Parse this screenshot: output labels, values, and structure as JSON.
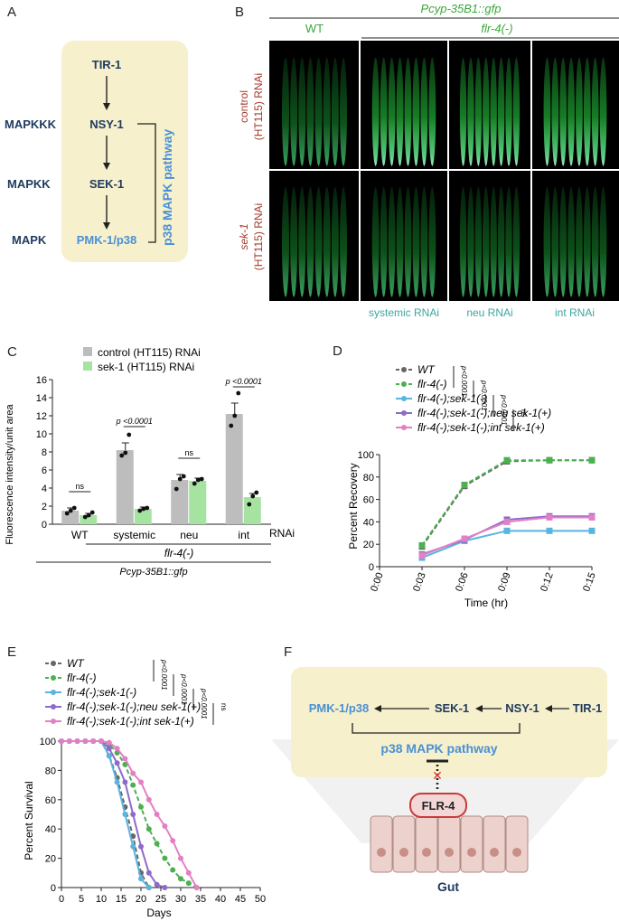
{
  "panel_a": {
    "letter": "A",
    "levels": [
      "MAPKKK",
      "MAPKK",
      "MAPK"
    ],
    "nodes": [
      "TIR-1",
      "NSY-1",
      "SEK-1",
      "PMK-1/p38"
    ],
    "pathway_label": "p38 MAPK pathway"
  },
  "panel_b": {
    "letter": "B",
    "reporter": "Pcyp-35B1::gfp",
    "col_wt": "WT",
    "col_flr4": "flr-4(-)",
    "row1": "control",
    "row1b": "(HT115) RNAi",
    "row2": "sek-1",
    "row2b": "(HT115) RNAi",
    "bottom": [
      "systemic RNAi",
      "neu RNAi",
      "int RNAi"
    ]
  },
  "panel_c": {
    "letter": "C",
    "legend": [
      "control (HT115) RNAi",
      "sek-1 (HT115) RNAi"
    ],
    "ylabel": "Fluorescence intensity/unit area",
    "groups": [
      "WT",
      "systemic",
      "neu",
      "int"
    ],
    "rnai_label": "RNAi",
    "flr4_label": "flr-4(-)",
    "reporter_label": "Pcyp-35B1::gfp",
    "stats": [
      "ns",
      "p <0.0001",
      "ns",
      "p <0.0001"
    ]
  },
  "panel_d": {
    "letter": "D",
    "legend": [
      "WT",
      "flr-4(-)",
      "flr-4(-);sek-1(-)",
      "flr-4(-);sek-1(-);neu sek-1(+)",
      "flr-4(-);sek-1(-);int sek-1(+)"
    ],
    "stats": [
      "p<0.0001",
      "p<0.0001",
      "p<0.0001",
      "ns"
    ],
    "ylabel": "Percent Recovery",
    "xlabel": "Time (hr)"
  },
  "panel_e": {
    "letter": "E",
    "legend": [
      "WT",
      "flr-4(-)",
      "flr-4(-);sek-1(-)",
      "flr-4(-);sek-1(-);neu sek-1(+)",
      "flr-4(-);sek-1(-);int sek-1(+)"
    ],
    "stats": [
      "p<0.0001",
      "p<0.0001",
      "p<0.0001",
      "ns"
    ],
    "ylabel": "Percent Survival",
    "xlabel": "Days"
  },
  "panel_f": {
    "letter": "F",
    "nodes": [
      "PMK-1/p38",
      "SEK-1",
      "NSY-1",
      "TIR-1"
    ],
    "pathway_label": "p38 MAPK pathway",
    "receptor": "FLR-4",
    "tissue": "Gut"
  },
  "chart_data": [
    {
      "type": "bar",
      "categories": [
        "WT",
        "systemic",
        "neu",
        "int"
      ],
      "series": [
        {
          "name": "control (HT115) RNAi",
          "color": "#bdbdbd",
          "values": [
            1.5,
            8.2,
            4.9,
            12.2
          ],
          "errors": [
            0.3,
            0.8,
            0.6,
            1.2
          ],
          "points": [
            [
              1.2,
              1.5,
              1.8
            ],
            [
              7.6,
              7.9,
              9.9
            ],
            [
              3.9,
              5.0,
              5.3
            ],
            [
              10.9,
              12.0,
              14.5
            ]
          ]
        },
        {
          "name": "sek-1 (HT115) RNAi",
          "color": "#a6e3a1",
          "values": [
            1.0,
            1.7,
            4.8,
            3.0
          ],
          "errors": [
            0.2,
            0.2,
            0.3,
            0.4
          ],
          "points": [
            [
              0.8,
              1.0,
              1.3
            ],
            [
              1.5,
              1.7,
              1.8
            ],
            [
              4.5,
              4.9,
              5.0
            ],
            [
              2.2,
              3.1,
              3.5
            ]
          ]
        }
      ],
      "ylabel": "Fluorescence intensity/unit area",
      "ylim": [
        0,
        16
      ],
      "yticks": [
        0,
        2,
        4,
        6,
        8,
        10,
        12,
        14,
        16
      ]
    },
    {
      "type": "line",
      "x": [
        "0:00",
        "0:03",
        "0:06",
        "0:09",
        "0:12",
        "0:15"
      ],
      "series": [
        {
          "name": "WT",
          "color": "#666666",
          "dash": true,
          "marker": "square",
          "values": [
            null,
            18,
            72,
            94,
            95,
            95
          ]
        },
        {
          "name": "flr-4(-)",
          "color": "#4caf50",
          "dash": true,
          "marker": "square",
          "values": [
            null,
            19,
            73,
            95,
            95,
            95
          ]
        },
        {
          "name": "flr-4(-);sek-1(-)",
          "color": "#5ab4e0",
          "dash": false,
          "marker": "square",
          "values": [
            null,
            8,
            23,
            32,
            32,
            32
          ]
        },
        {
          "name": "flr-4(-);sek-1(-);neu sek-1(+)",
          "color": "#8e6bc8",
          "dash": false,
          "marker": "square",
          "values": [
            null,
            11,
            24,
            42,
            45,
            45
          ]
        },
        {
          "name": "flr-4(-);sek-1(-);int sek-1(+)",
          "color": "#e37fc4",
          "dash": false,
          "marker": "square",
          "values": [
            null,
            10,
            25,
            40,
            44,
            44
          ]
        }
      ],
      "ylabel": "Percent Recovery",
      "xlabel": "Time (hr)",
      "ylim": [
        0,
        100
      ],
      "yticks": [
        0,
        20,
        40,
        60,
        80,
        100
      ]
    },
    {
      "type": "line",
      "x": [
        0,
        2,
        4,
        6,
        8,
        10,
        12,
        14,
        16,
        18,
        20,
        22,
        24,
        26,
        28,
        30,
        32,
        34
      ],
      "series": [
        {
          "name": "WT",
          "color": "#666666",
          "dash": true,
          "values": [
            100,
            100,
            100,
            100,
            100,
            100,
            90,
            75,
            55,
            35,
            10,
            0,
            null,
            null,
            null,
            null,
            null,
            null
          ]
        },
        {
          "name": "flr-4(-)",
          "color": "#4caf50",
          "dash": true,
          "values": [
            100,
            100,
            100,
            100,
            100,
            100,
            98,
            92,
            84,
            70,
            55,
            40,
            30,
            20,
            12,
            6,
            3,
            0
          ]
        },
        {
          "name": "flr-4(-);sek-1(-)",
          "color": "#5ab4e0",
          "dash": false,
          "values": [
            100,
            100,
            100,
            100,
            100,
            100,
            90,
            72,
            50,
            28,
            6,
            0,
            null,
            null,
            null,
            null,
            null,
            null
          ]
        },
        {
          "name": "flr-4(-);sek-1(-);neu sek-1(+)",
          "color": "#8e6bc8",
          "dash": false,
          "values": [
            100,
            100,
            100,
            100,
            100,
            100,
            95,
            85,
            72,
            50,
            28,
            10,
            2,
            0,
            null,
            null,
            null,
            null
          ]
        },
        {
          "name": "flr-4(-);sek-1(-);int sek-1(+)",
          "color": "#e37fc4",
          "dash": false,
          "values": [
            100,
            100,
            100,
            100,
            100,
            100,
            99,
            95,
            88,
            78,
            72,
            60,
            50,
            42,
            32,
            20,
            10,
            0
          ]
        }
      ],
      "ylabel": "Percent Survival",
      "xlabel": "Days",
      "xlim": [
        0,
        50
      ],
      "xticks": [
        0,
        5,
        10,
        15,
        20,
        25,
        30,
        35,
        40,
        45,
        50
      ],
      "ylim": [
        0,
        100
      ],
      "yticks": [
        0,
        20,
        40,
        60,
        80,
        100
      ]
    }
  ]
}
